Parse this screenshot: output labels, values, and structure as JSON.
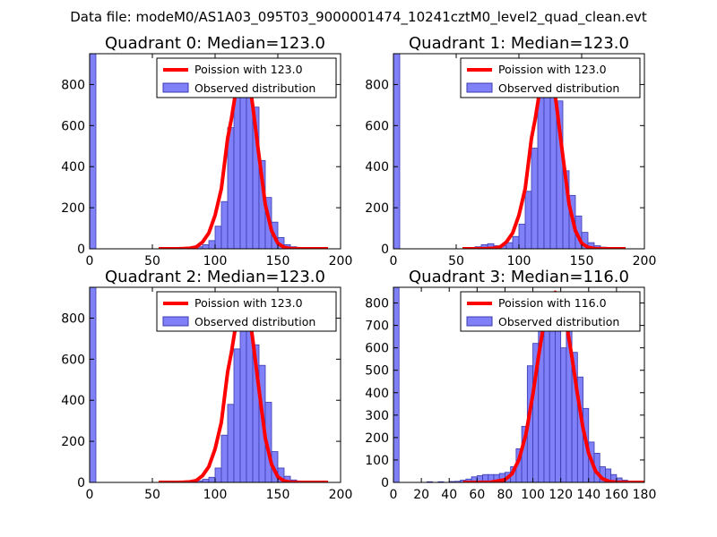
{
  "figure": {
    "suptitle": "Data file: modeM0/AS1A03_095T03_9000001474_10241cztM0_level2_quad_clean.evt"
  },
  "colors": {
    "histogram_fill": "#8080f8",
    "histogram_edge": "#3a3ab0",
    "poisson_line": "#ff0000",
    "legend_edge": "#000000",
    "axes_edge": "#000000"
  },
  "chart_data": [
    {
      "type": "bar",
      "title": "Quadrant 0: Median=123.0",
      "legend": [
        "Poission with 123.0",
        "Observed distribution"
      ],
      "legend_location": "top-right",
      "xlim": [
        0,
        200
      ],
      "ylim": [
        0,
        950
      ],
      "xticks": [
        0,
        50,
        100,
        150,
        200
      ],
      "yticks": [
        0,
        200,
        400,
        600,
        800
      ],
      "median": 123.0,
      "bin_width": 5,
      "bins": [
        {
          "x0": 0,
          "count": 950
        },
        {
          "x0": 75,
          "count": 5
        },
        {
          "x0": 80,
          "count": 8
        },
        {
          "x0": 85,
          "count": 10
        },
        {
          "x0": 90,
          "count": 20
        },
        {
          "x0": 95,
          "count": 40
        },
        {
          "x0": 100,
          "count": 110
        },
        {
          "x0": 105,
          "count": 230
        },
        {
          "x0": 110,
          "count": 590
        },
        {
          "x0": 115,
          "count": 760
        },
        {
          "x0": 120,
          "count": 860
        },
        {
          "x0": 125,
          "count": 850
        },
        {
          "x0": 130,
          "count": 690
        },
        {
          "x0": 135,
          "count": 430
        },
        {
          "x0": 140,
          "count": 250
        },
        {
          "x0": 145,
          "count": 130
        },
        {
          "x0": 150,
          "count": 55
        },
        {
          "x0": 155,
          "count": 20
        },
        {
          "x0": 160,
          "count": 10
        },
        {
          "x0": 165,
          "count": 5
        }
      ],
      "poisson_curve_x": [
        55,
        60,
        65,
        70,
        75,
        80,
        85,
        90,
        95,
        100,
        105,
        110,
        113,
        116,
        119,
        121,
        123,
        125,
        127,
        130,
        133,
        136,
        140,
        145,
        150,
        155,
        160,
        170,
        180,
        190
      ],
      "poisson_curve_y": [
        0,
        0,
        0,
        0,
        1,
        3,
        9,
        33,
        77,
        163,
        293,
        538,
        633,
        747,
        829,
        875,
        895,
        875,
        829,
        697,
        549,
        404,
        216,
        88,
        27,
        7,
        1,
        0,
        0,
        0
      ]
    },
    {
      "type": "bar",
      "title": "Quadrant 1: Median=123.0",
      "legend": [
        "Poission with 123.0",
        "Observed distribution"
      ],
      "legend_location": "top-right",
      "xlim": [
        0,
        200
      ],
      "ylim": [
        0,
        950
      ],
      "xticks": [
        0,
        50,
        100,
        150,
        200
      ],
      "yticks": [
        0,
        200,
        400,
        600,
        800
      ],
      "median": 123.0,
      "bin_width": 5,
      "bins": [
        {
          "x0": 0,
          "count": 950
        },
        {
          "x0": 60,
          "count": 5
        },
        {
          "x0": 65,
          "count": 10
        },
        {
          "x0": 70,
          "count": 20
        },
        {
          "x0": 75,
          "count": 25
        },
        {
          "x0": 80,
          "count": 15
        },
        {
          "x0": 85,
          "count": 15
        },
        {
          "x0": 90,
          "count": 30
        },
        {
          "x0": 95,
          "count": 60
        },
        {
          "x0": 100,
          "count": 120
        },
        {
          "x0": 105,
          "count": 280
        },
        {
          "x0": 110,
          "count": 490
        },
        {
          "x0": 115,
          "count": 760
        },
        {
          "x0": 120,
          "count": 870
        },
        {
          "x0": 125,
          "count": 880
        },
        {
          "x0": 130,
          "count": 720
        },
        {
          "x0": 135,
          "count": 380
        },
        {
          "x0": 140,
          "count": 260
        },
        {
          "x0": 145,
          "count": 160
        },
        {
          "x0": 150,
          "count": 80
        },
        {
          "x0": 155,
          "count": 30
        },
        {
          "x0": 160,
          "count": 15
        },
        {
          "x0": 165,
          "count": 8
        },
        {
          "x0": 170,
          "count": 5
        }
      ],
      "poisson_curve_x": [
        55,
        60,
        65,
        70,
        75,
        80,
        85,
        90,
        95,
        100,
        105,
        110,
        113,
        116,
        119,
        121,
        123,
        125,
        127,
        130,
        133,
        136,
        140,
        145,
        150,
        155,
        160,
        170,
        180,
        185
      ],
      "poisson_curve_y": [
        0,
        0,
        0,
        0,
        1,
        3,
        9,
        33,
        77,
        163,
        293,
        538,
        633,
        747,
        829,
        875,
        895,
        875,
        829,
        697,
        549,
        404,
        216,
        88,
        27,
        7,
        1,
        0,
        0,
        0
      ]
    },
    {
      "type": "bar",
      "title": "Quadrant 2: Median=123.0",
      "legend": [
        "Poission with 123.0",
        "Observed distribution"
      ],
      "legend_location": "top-right",
      "xlim": [
        0,
        200
      ],
      "ylim": [
        0,
        950
      ],
      "xticks": [
        0,
        50,
        100,
        150,
        200
      ],
      "yticks": [
        0,
        200,
        400,
        600,
        800
      ],
      "median": 123.0,
      "bin_width": 5,
      "bins": [
        {
          "x0": 0,
          "count": 950
        },
        {
          "x0": 80,
          "count": 5
        },
        {
          "x0": 85,
          "count": 8
        },
        {
          "x0": 90,
          "count": 15
        },
        {
          "x0": 95,
          "count": 25
        },
        {
          "x0": 100,
          "count": 70
        },
        {
          "x0": 105,
          "count": 230
        },
        {
          "x0": 110,
          "count": 380
        },
        {
          "x0": 115,
          "count": 650
        },
        {
          "x0": 120,
          "count": 860
        },
        {
          "x0": 125,
          "count": 840
        },
        {
          "x0": 130,
          "count": 670
        },
        {
          "x0": 135,
          "count": 570
        },
        {
          "x0": 140,
          "count": 390
        },
        {
          "x0": 145,
          "count": 150
        },
        {
          "x0": 150,
          "count": 70
        },
        {
          "x0": 155,
          "count": 30
        },
        {
          "x0": 160,
          "count": 12
        },
        {
          "x0": 165,
          "count": 5
        }
      ],
      "poisson_curve_x": [
        55,
        60,
        65,
        70,
        75,
        80,
        85,
        90,
        95,
        100,
        105,
        110,
        113,
        116,
        119,
        121,
        123,
        125,
        127,
        130,
        133,
        136,
        140,
        145,
        150,
        155,
        160,
        170,
        180,
        190
      ],
      "poisson_curve_y": [
        0,
        0,
        0,
        0,
        1,
        3,
        9,
        33,
        77,
        163,
        293,
        538,
        633,
        747,
        829,
        875,
        895,
        875,
        829,
        697,
        549,
        404,
        216,
        88,
        27,
        7,
        1,
        0,
        0,
        0
      ]
    },
    {
      "type": "bar",
      "title": "Quadrant 3: Median=116.0",
      "legend": [
        "Poission with 116.0",
        "Observed distribution"
      ],
      "legend_location": "top-right",
      "xlim": [
        0,
        180
      ],
      "ylim": [
        0,
        870
      ],
      "xticks": [
        0,
        20,
        40,
        60,
        80,
        100,
        120,
        140,
        160,
        180
      ],
      "yticks": [
        0,
        100,
        200,
        300,
        400,
        500,
        600,
        700,
        800
      ],
      "median": 116.0,
      "bin_width": 4,
      "bins": [
        {
          "x0": 0,
          "count": 870
        },
        {
          "x0": 24,
          "count": 3
        },
        {
          "x0": 32,
          "count": 3
        },
        {
          "x0": 40,
          "count": 4
        },
        {
          "x0": 44,
          "count": 5
        },
        {
          "x0": 48,
          "count": 10
        },
        {
          "x0": 52,
          "count": 15
        },
        {
          "x0": 56,
          "count": 25
        },
        {
          "x0": 60,
          "count": 30
        },
        {
          "x0": 64,
          "count": 35
        },
        {
          "x0": 68,
          "count": 35
        },
        {
          "x0": 72,
          "count": 35
        },
        {
          "x0": 76,
          "count": 40
        },
        {
          "x0": 80,
          "count": 45
        },
        {
          "x0": 84,
          "count": 70
        },
        {
          "x0": 88,
          "count": 150
        },
        {
          "x0": 92,
          "count": 250
        },
        {
          "x0": 96,
          "count": 520
        },
        {
          "x0": 100,
          "count": 620
        },
        {
          "x0": 104,
          "count": 690
        },
        {
          "x0": 108,
          "count": 800
        },
        {
          "x0": 112,
          "count": 810
        },
        {
          "x0": 116,
          "count": 710
        },
        {
          "x0": 120,
          "count": 600
        },
        {
          "x0": 124,
          "count": 740
        },
        {
          "x0": 128,
          "count": 580
        },
        {
          "x0": 132,
          "count": 470
        },
        {
          "x0": 136,
          "count": 330
        },
        {
          "x0": 140,
          "count": 180
        },
        {
          "x0": 144,
          "count": 130
        },
        {
          "x0": 148,
          "count": 70
        },
        {
          "x0": 152,
          "count": 60
        },
        {
          "x0": 156,
          "count": 35
        },
        {
          "x0": 160,
          "count": 20
        },
        {
          "x0": 164,
          "count": 10
        },
        {
          "x0": 168,
          "count": 5
        }
      ],
      "poisson_curve_x": [
        50,
        60,
        70,
        80,
        85,
        90,
        95,
        100,
        104,
        108,
        111,
        114,
        116,
        118,
        121,
        124,
        128,
        132,
        136,
        140,
        145,
        150,
        155,
        160,
        170,
        180
      ],
      "poisson_curve_y": [
        0,
        0,
        1,
        12,
        38,
        101,
        214,
        392,
        560,
        712,
        795,
        838,
        848,
        838,
        795,
        712,
        560,
        392,
        241,
        130,
        50,
        16,
        4,
        1,
        0,
        0
      ]
    }
  ]
}
